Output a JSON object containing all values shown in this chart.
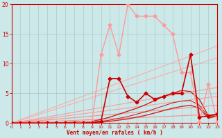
{
  "xlabel": "Vent moyen/en rafales ( km/h )",
  "background_color": "#cce8e8",
  "grid_color": "#aacccc",
  "xlim": [
    0,
    23
  ],
  "ylim": [
    0,
    20
  ],
  "yticks": [
    0,
    5,
    10,
    15,
    20
  ],
  "xticks": [
    0,
    1,
    2,
    3,
    4,
    5,
    6,
    7,
    8,
    9,
    10,
    11,
    12,
    13,
    14,
    15,
    16,
    17,
    18,
    19,
    20,
    21,
    22,
    23
  ],
  "ref_lines": [
    {
      "slope_end": 13.0,
      "color": "#ffaaaa",
      "lw": 0.8
    },
    {
      "slope_end": 11.0,
      "color": "#ffaaaa",
      "lw": 0.8
    },
    {
      "slope_end": 6.0,
      "color": "#ff9999",
      "lw": 0.8
    },
    {
      "slope_end": 4.5,
      "color": "#ff9999",
      "lw": 0.8
    },
    {
      "slope_end": 3.0,
      "color": "#ff8888",
      "lw": 0.8
    },
    {
      "slope_end": 1.5,
      "color": "#ff8888",
      "lw": 0.8
    }
  ],
  "pink_line_x": [
    0,
    1,
    2,
    3,
    4,
    5,
    6,
    7,
    8,
    9,
    10,
    11,
    12,
    13,
    14,
    15,
    16,
    17,
    18,
    19,
    20,
    21,
    22,
    23
  ],
  "pink_line_y": [
    0,
    0,
    0,
    0,
    0,
    0,
    0,
    0,
    0.2,
    0.3,
    11.5,
    16.5,
    11.5,
    20.0,
    18.0,
    18.0,
    18.0,
    16.5,
    15.0,
    8.5,
    8.5,
    0.2,
    6.5,
    0.2
  ],
  "pink_line_color": "#ff9999",
  "pink_line_lw": 1.0,
  "pink_line_marker": "D",
  "pink_line_ms": 2.5,
  "darkred_line_x": [
    0,
    1,
    2,
    3,
    4,
    5,
    6,
    7,
    8,
    9,
    10,
    11,
    12,
    13,
    14,
    15,
    16,
    17,
    18,
    19,
    20,
    21,
    22,
    23
  ],
  "darkred_line_y": [
    0,
    0,
    0,
    0,
    0,
    0,
    0,
    0,
    0,
    0,
    0.3,
    7.5,
    7.5,
    4.5,
    3.5,
    5.0,
    4.0,
    4.5,
    5.0,
    5.0,
    11.5,
    1.0,
    1.2,
    1.5
  ],
  "darkred_line_color": "#cc0000",
  "darkred_line_lw": 1.2,
  "darkred_line_marker": "D",
  "darkred_line_ms": 2.5,
  "smooth_lines": [
    {
      "x": [
        0,
        1,
        2,
        3,
        4,
        5,
        6,
        7,
        8,
        9,
        10,
        11,
        12,
        13,
        14,
        15,
        16,
        17,
        18,
        19,
        20,
        21,
        22,
        23
      ],
      "y": [
        0,
        0,
        0,
        0,
        0,
        0,
        0,
        0,
        0,
        0.05,
        0.15,
        0.3,
        0.5,
        0.7,
        1.0,
        1.3,
        1.7,
        2.1,
        2.5,
        2.8,
        3.0,
        2.5,
        0.8,
        1.2
      ],
      "color": "#cc2222",
      "lw": 1.0
    },
    {
      "x": [
        0,
        1,
        2,
        3,
        4,
        5,
        6,
        7,
        8,
        9,
        10,
        11,
        12,
        13,
        14,
        15,
        16,
        17,
        18,
        19,
        20,
        21,
        22,
        23
      ],
      "y": [
        0,
        0,
        0,
        0,
        0,
        0.05,
        0.1,
        0.15,
        0.2,
        0.3,
        0.6,
        1.0,
        1.5,
        2.0,
        2.5,
        3.1,
        3.8,
        4.5,
        5.0,
        5.5,
        5.3,
        4.0,
        1.2,
        1.5
      ],
      "color": "#cc2222",
      "lw": 1.0
    },
    {
      "x": [
        0,
        1,
        2,
        3,
        4,
        5,
        6,
        7,
        8,
        9,
        10,
        11,
        12,
        13,
        14,
        15,
        16,
        17,
        18,
        19,
        20,
        21,
        22,
        23
      ],
      "y": [
        0,
        0,
        0,
        0,
        0,
        0,
        0,
        0.05,
        0.1,
        0.15,
        0.3,
        0.5,
        0.8,
        1.1,
        1.5,
        1.9,
        2.4,
        2.9,
        3.4,
        3.7,
        3.8,
        3.0,
        1.0,
        1.3
      ],
      "color": "#cc2222",
      "lw": 0.8
    }
  ]
}
